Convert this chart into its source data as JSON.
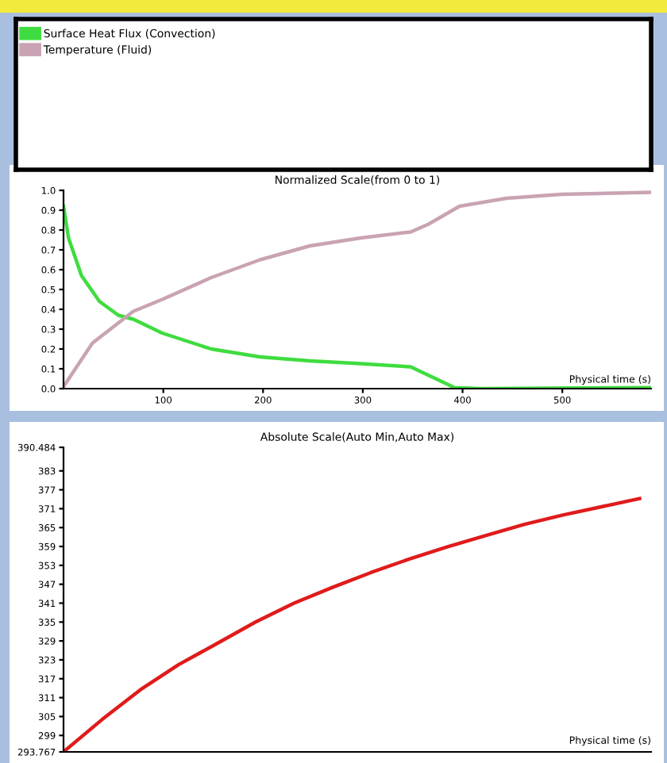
{
  "chart_data": [
    {
      "type": "line",
      "title": "Normalized Scale(from 0 to 1)",
      "xlabel": "Physical time (s)",
      "xlim": [
        0,
        589
      ],
      "xticks": [
        100,
        200,
        300,
        400,
        500
      ],
      "ylim": [
        0,
        1
      ],
      "yticks": [
        {
          "value": 0,
          "label": "0.0"
        },
        0.1,
        0.2,
        0.3,
        0.4,
        0.5,
        0.6,
        0.7,
        0.8,
        0.9,
        {
          "value": 1,
          "label": "1.0"
        }
      ],
      "legend": "top",
      "grid": false,
      "series": [
        {
          "name": "Surface Heat Flux (Convection)",
          "color": "#3fdc3f",
          "x": [
            0,
            5,
            18,
            36,
            55,
            70,
            99,
            148,
            197,
            247,
            298,
            348,
            366,
            392,
            418,
            589
          ],
          "values": [
            0.92,
            0.76,
            0.57,
            0.44,
            0.37,
            0.35,
            0.28,
            0.2,
            0.16,
            0.14,
            0.126,
            0.11,
            0.067,
            0.005,
            0,
            0.005
          ]
        },
        {
          "name": "Temperature (Fluid)",
          "color": "#c9a3b3",
          "x": [
            0,
            29,
            70,
            99,
            148,
            197,
            247,
            298,
            348,
            366,
            397,
            444,
            499,
            589
          ],
          "values": [
            0.01,
            0.23,
            0.39,
            0.45,
            0.56,
            0.65,
            0.72,
            0.76,
            0.79,
            0.83,
            0.92,
            0.96,
            0.98,
            0.99
          ]
        }
      ]
    },
    {
      "type": "line",
      "title": "Absolute Scale(Auto Min,Auto Max)",
      "xlabel": "Physical time (s)",
      "categories": [
        null,
        null,
        null,
        null,
        null,
        null,
        null,
        null,
        null,
        null,
        null,
        null,
        null,
        null,
        null,
        null
      ],
      "ylim": [
        293.767,
        390.484
      ],
      "yticks": [
        {
          "value": 293.767,
          "label": "293.767"
        },
        299,
        305,
        311,
        317,
        323,
        329,
        335,
        341,
        347,
        353,
        359,
        365,
        371,
        377,
        383,
        {
          "value": 390.484,
          "label": "390.484"
        }
      ],
      "grid": false,
      "series": [
        {
          "color": "#e01b1b",
          "values": [
            293.8,
            304,
            313.5,
            321.5,
            328.2,
            335,
            341,
            346,
            350.7,
            355,
            358.9,
            362.5,
            366,
            369,
            371.6,
            374.2
          ]
        }
      ]
    }
  ]
}
